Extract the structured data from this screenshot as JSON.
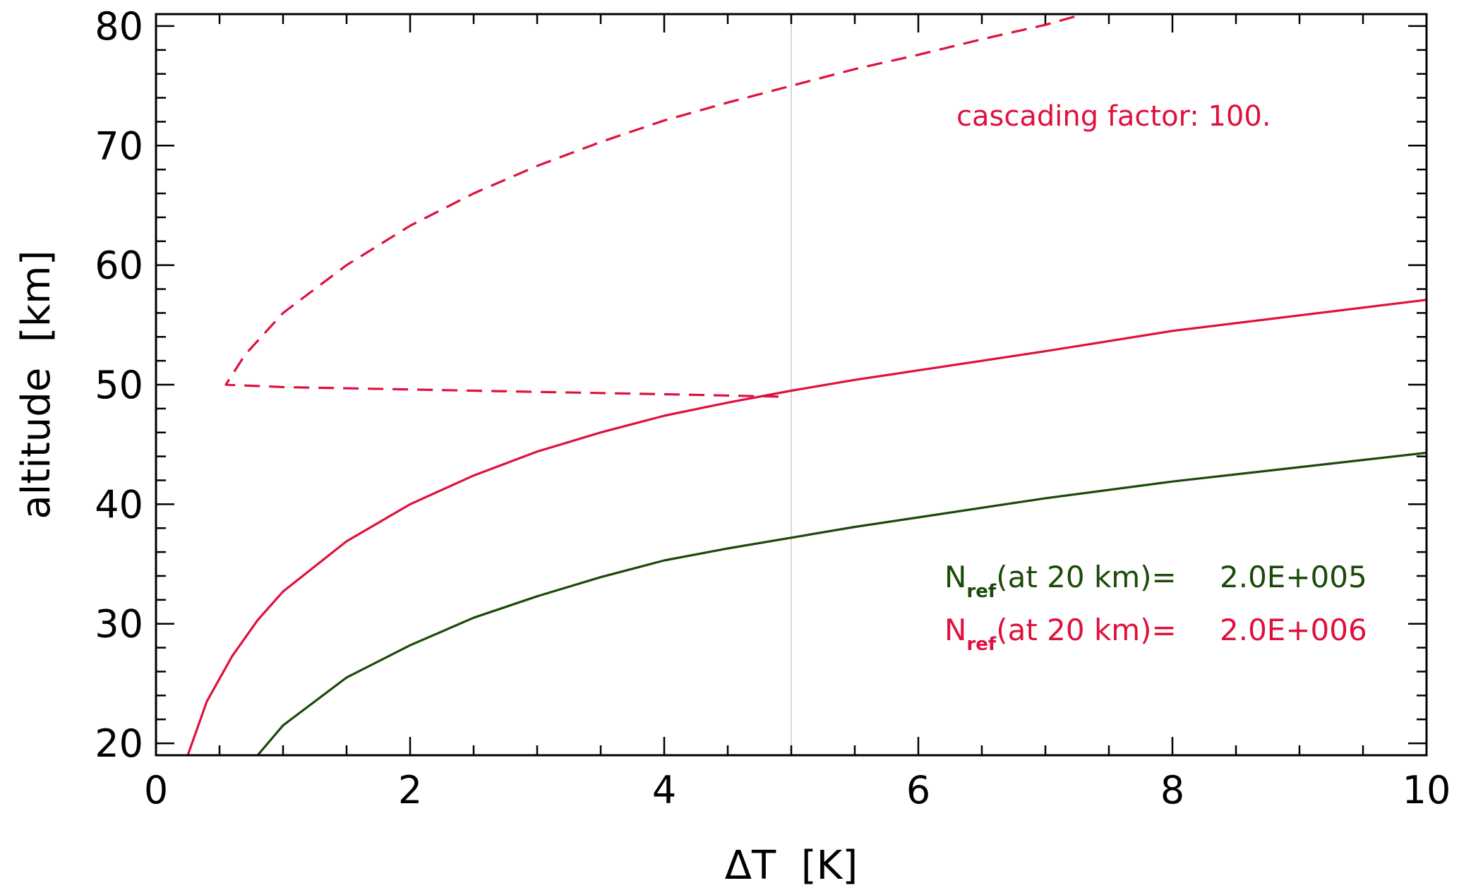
{
  "chart_data": {
    "type": "line",
    "xlabel": "ΔT  [K]",
    "ylabel": "altitude  [km]",
    "xlim": [
      0,
      10
    ],
    "ylim": [
      19,
      81
    ],
    "xticks": [
      0,
      2,
      4,
      6,
      8,
      10
    ],
    "yticks": [
      20,
      30,
      40,
      50,
      60,
      70,
      80
    ],
    "x_minor_step": 0.5,
    "y_minor_step": 2,
    "grid": false,
    "reference_line_x": 5,
    "annotation": "cascading factor: 100.",
    "series": [
      {
        "color": "#1a4a0a",
        "style": "solid",
        "x": [
          0.8,
          1.0,
          1.5,
          2.0,
          2.5,
          3.0,
          3.5,
          4.0,
          4.5,
          5.0,
          5.5,
          6.0,
          7.0,
          8.0,
          9.0,
          10.0
        ],
        "y": [
          19.0,
          21.5,
          25.5,
          28.2,
          30.5,
          32.3,
          33.9,
          35.3,
          36.3,
          37.2,
          38.1,
          38.9,
          40.5,
          41.9,
          43.1,
          44.3
        ]
      },
      {
        "color": "#e0103c",
        "style": "solid",
        "x": [
          0.25,
          0.4,
          0.6,
          0.8,
          1.0,
          1.5,
          2.0,
          2.5,
          3.0,
          3.5,
          4.0,
          4.5,
          5.0,
          5.5,
          6.0,
          7.0,
          8.0,
          9.0,
          10.0
        ],
        "y": [
          19.0,
          23.5,
          27.3,
          30.3,
          32.7,
          36.9,
          40.0,
          42.4,
          44.4,
          46.0,
          47.4,
          48.5,
          49.5,
          50.4,
          51.2,
          52.8,
          54.5,
          55.8,
          57.1
        ]
      },
      {
        "color": "#e0103c",
        "style": "dashed",
        "x": [
          4.9,
          4.0,
          3.0,
          2.0,
          1.0,
          0.55,
          0.7,
          1.0,
          1.5,
          2.0,
          2.5,
          3.0,
          3.5,
          4.0,
          4.5,
          5.0,
          5.5,
          6.0,
          6.5,
          7.0,
          7.3
        ],
        "y": [
          49.0,
          49.2,
          49.4,
          49.6,
          49.8,
          50.0,
          52.5,
          56.0,
          60.0,
          63.3,
          66.0,
          68.3,
          70.3,
          72.1,
          73.6,
          75.0,
          76.4,
          77.6,
          78.9,
          80.1,
          81.0
        ]
      }
    ],
    "legend": {
      "placement": "lower-right",
      "entries": [
        {
          "prefix": "N",
          "sub": "ref",
          "text": "(at 20 km)=",
          "value": "2.0E+005",
          "color": "#1a4a0a"
        },
        {
          "prefix": "N",
          "sub": "ref",
          "text": "(at 20 km)=",
          "value": "2.0E+006",
          "color": "#e0103c"
        }
      ]
    }
  }
}
